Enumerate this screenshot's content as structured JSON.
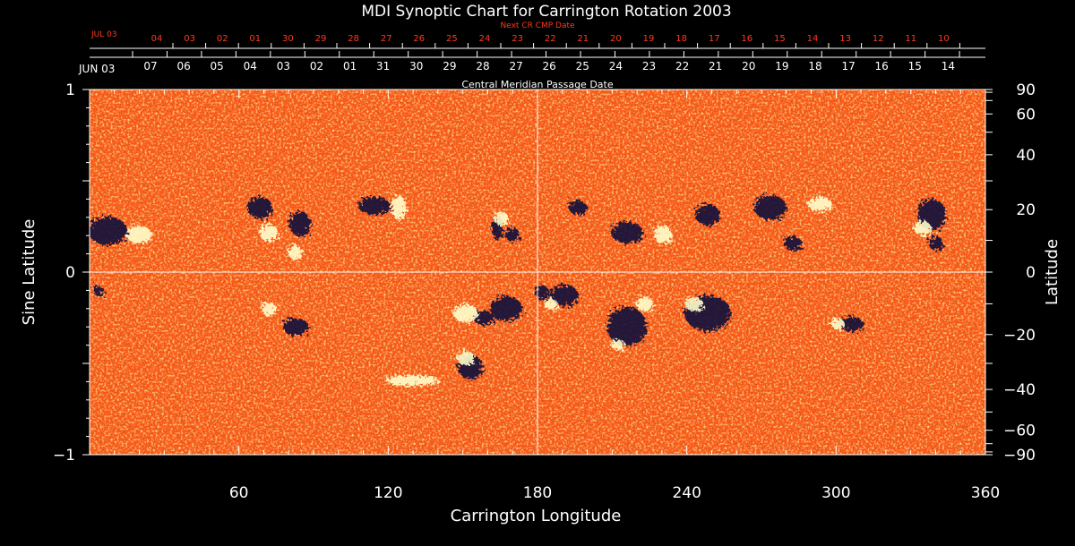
{
  "chart_data": {
    "type": "heatmap",
    "title": "MDI Synoptic Chart for Carrington Rotation 2003",
    "xlabel": "Carrington Longitude",
    "ylabel_left": "Sine Latitude",
    "ylabel_right": "Latitude",
    "xlim": [
      0,
      360
    ],
    "ylim": [
      -1,
      1
    ],
    "x_ticks": [
      60,
      120,
      180,
      240,
      300,
      360
    ],
    "y_ticks_left": [
      {
        "value": 1,
        "label": "1"
      },
      {
        "value": 0,
        "label": "0"
      },
      {
        "value": -1,
        "label": "−1"
      }
    ],
    "y_ticks_right_deg": [
      {
        "deg": 90,
        "label": "90"
      },
      {
        "deg": 60,
        "label": "60"
      },
      {
        "deg": 40,
        "label": "40"
      },
      {
        "deg": 20,
        "label": "20"
      },
      {
        "deg": 0,
        "label": "0"
      },
      {
        "deg": -20,
        "label": "−20"
      },
      {
        "deg": -40,
        "label": "−40"
      },
      {
        "deg": -60,
        "label": "−60"
      },
      {
        "deg": -90,
        "label": "−90"
      }
    ],
    "cmp_axis": {
      "title": "Central Meridian Passage Date",
      "start_label": "JUN 03",
      "dates": [
        "07",
        "06",
        "05",
        "04",
        "03",
        "02",
        "01",
        "31",
        "30",
        "29",
        "28",
        "27",
        "26",
        "25",
        "24",
        "23",
        "22",
        "21",
        "20",
        "19",
        "18",
        "17",
        "16",
        "15",
        "14"
      ]
    },
    "next_cmp_axis": {
      "title": "Next CR CMP Date",
      "start_label": "JUL 03",
      "dates": [
        "04",
        "03",
        "02",
        "01",
        "30",
        "29",
        "28",
        "27",
        "26",
        "25",
        "24",
        "23",
        "22",
        "21",
        "20",
        "19",
        "18",
        "17",
        "16",
        "15",
        "14",
        "13",
        "12",
        "11",
        "10"
      ]
    },
    "reference_lines": {
      "longitude": 180,
      "sine_latitude": 0
    },
    "colors": {
      "background": "#ff5a14",
      "positive_flux": "#ffffcc",
      "negative_flux": "#0a0a3c",
      "text": "#ffffff",
      "next_cmp_text": "#ff3a1a"
    }
  }
}
